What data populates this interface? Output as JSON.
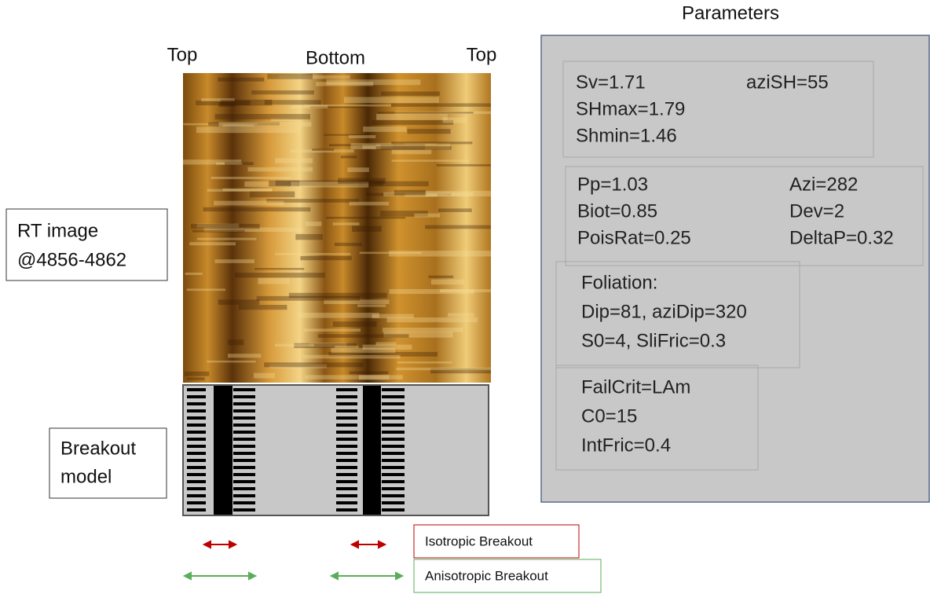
{
  "parameters_title": "Parameters",
  "column_labels": [
    "Top",
    "Bottom",
    "Top"
  ],
  "side_labels": {
    "rt_image": [
      "RT image",
      "@4856-4862"
    ],
    "breakout_model": [
      "Breakout",
      "model"
    ]
  },
  "parameter_groups": [
    {
      "rows": [
        [
          "Sv=1.71",
          "aziSH=55"
        ],
        [
          "SHmax=1.79"
        ],
        [
          "Shmin=1.46"
        ]
      ]
    },
    {
      "rows": [
        [
          "Pp=1.03",
          "Azi=282"
        ],
        [
          "Biot=0.85",
          "Dev=2"
        ],
        [
          "PoisRat=0.25",
          "DeltaP=0.32"
        ]
      ]
    },
    {
      "rows": [
        [
          "Foliation:"
        ],
        [
          "Dip=81, aziDip=320"
        ],
        [
          "S0=4, SliFric=0.3"
        ]
      ]
    },
    {
      "rows": [
        [
          "FailCrit=LAm"
        ],
        [
          "C0=15"
        ],
        [
          "IntFric=0.4"
        ]
      ]
    }
  ],
  "legend": {
    "isotropic": "Isotropic Breakout",
    "anisotropic": "Anisotropic Breakout"
  }
}
